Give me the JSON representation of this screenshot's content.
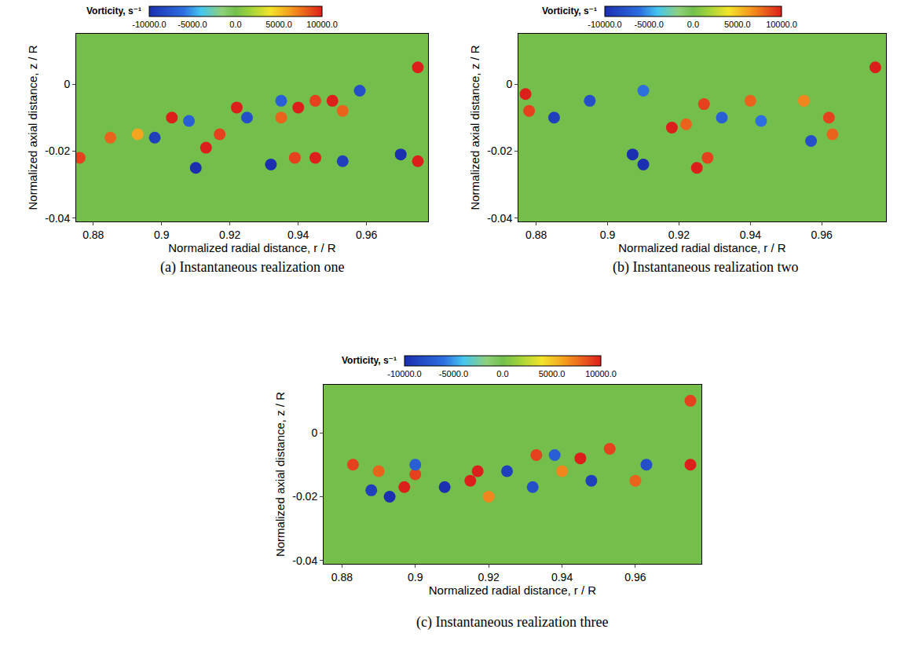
{
  "chart_data": [
    {
      "type": "scatter",
      "caption": "(a) Instantaneous realization one",
      "x_label": "Normalized radial distance, r / R",
      "y_label": "Normalized axial distance, z / R",
      "xlim": [
        0.875,
        0.978
      ],
      "xticks": [
        0.88,
        0.9,
        0.92,
        0.94,
        0.96
      ],
      "ylim": [
        -0.041,
        0.015
      ],
      "yticks": [
        -0.04,
        -0.02,
        0
      ],
      "colorbar": {
        "title": "Vorticity, s⁻¹",
        "range": [
          -10000,
          10000
        ],
        "ticks": [
          {
            "value": -10000,
            "label": "-10000.0"
          },
          {
            "value": -5000,
            "label": "-5000.0"
          },
          {
            "value": 0,
            "label": "0.0"
          },
          {
            "value": 5000,
            "label": "5000.0"
          },
          {
            "value": 10000,
            "label": "10000.0"
          }
        ]
      },
      "x": [
        0.876,
        0.885,
        0.893,
        0.903,
        0.913,
        0.917,
        0.922,
        0.935,
        0.94,
        0.945,
        0.95,
        0.953,
        0.939,
        0.945,
        0.975,
        0.975,
        0.91,
        0.898,
        0.908,
        0.932,
        0.925,
        0.953,
        0.97,
        0.958,
        0.935
      ],
      "y": [
        -0.022,
        -0.016,
        -0.015,
        -0.01,
        -0.019,
        -0.015,
        -0.007,
        -0.01,
        -0.007,
        -0.005,
        -0.005,
        -0.008,
        -0.022,
        -0.022,
        -0.023,
        0.005,
        -0.025,
        -0.016,
        -0.011,
        -0.024,
        -0.01,
        -0.023,
        -0.021,
        -0.002,
        -0.005
      ],
      "vorticity": [
        9000,
        8000,
        6000,
        10000,
        10000,
        9000,
        10000,
        8000,
        10000,
        9000,
        10000,
        8000,
        9000,
        10000,
        10000,
        10000,
        -10000,
        -9000,
        -7000,
        -10000,
        -8000,
        -9000,
        -10000,
        -8000,
        -7000
      ]
    },
    {
      "type": "scatter",
      "caption": "(b) Instantaneous realization two",
      "x_label": "Normalized radial distance, r / R",
      "y_label": "Normalized axial distance, z / R",
      "xlim": [
        0.875,
        0.978
      ],
      "xticks": [
        0.88,
        0.9,
        0.92,
        0.94,
        0.96
      ],
      "ylim": [
        -0.041,
        0.015
      ],
      "yticks": [
        -0.04,
        -0.02,
        0
      ],
      "colorbar": {
        "title": "Vorticity, s⁻¹",
        "range": [
          -10000,
          10000
        ],
        "ticks": [
          {
            "value": -10000,
            "label": "-10000.0"
          },
          {
            "value": -5000,
            "label": "-5000.0"
          },
          {
            "value": 0,
            "label": "0.0"
          },
          {
            "value": 5000,
            "label": "5000.0"
          },
          {
            "value": 10000,
            "label": "10000.0"
          }
        ]
      },
      "x": [
        0.877,
        0.878,
        0.925,
        0.928,
        0.918,
        0.922,
        0.927,
        0.94,
        0.955,
        0.962,
        0.963,
        0.975,
        0.885,
        0.895,
        0.91,
        0.907,
        0.91,
        0.957,
        0.932,
        0.943
      ],
      "y": [
        -0.003,
        -0.008,
        -0.025,
        -0.022,
        -0.013,
        -0.012,
        -0.006,
        -0.005,
        -0.005,
        -0.01,
        -0.015,
        0.005,
        -0.01,
        -0.005,
        -0.002,
        -0.021,
        -0.024,
        -0.017,
        -0.01,
        -0.011
      ],
      "vorticity": [
        10000,
        9000,
        10000,
        9000,
        10000,
        8000,
        9000,
        8000,
        7000,
        9000,
        8000,
        10000,
        -9000,
        -8000,
        -6000,
        -10000,
        -10000,
        -8000,
        -7000,
        -6000
      ]
    },
    {
      "type": "scatter",
      "caption": "(c) Instantaneous realization three",
      "x_label": "Normalized radial distance, r / R",
      "y_label": "Normalized axial distance, z / R",
      "xlim": [
        0.875,
        0.978
      ],
      "xticks": [
        0.88,
        0.9,
        0.92,
        0.94,
        0.96
      ],
      "ylim": [
        -0.041,
        0.015
      ],
      "yticks": [
        -0.04,
        -0.02,
        0
      ],
      "colorbar": {
        "title": "Vorticity, s⁻¹",
        "range": [
          -10000,
          10000
        ],
        "ticks": [
          {
            "value": -10000,
            "label": "-10000.0"
          },
          {
            "value": -5000,
            "label": "-5000.0"
          },
          {
            "value": 0,
            "label": "0.0"
          },
          {
            "value": 5000,
            "label": "5000.0"
          },
          {
            "value": 10000,
            "label": "10000.0"
          }
        ]
      },
      "x": [
        0.883,
        0.89,
        0.897,
        0.9,
        0.915,
        0.917,
        0.92,
        0.933,
        0.94,
        0.945,
        0.953,
        0.96,
        0.975,
        0.975,
        0.888,
        0.893,
        0.9,
        0.908,
        0.925,
        0.932,
        0.938,
        0.948,
        0.963
      ],
      "y": [
        -0.01,
        -0.012,
        -0.017,
        -0.013,
        -0.015,
        -0.012,
        -0.02,
        -0.007,
        -0.012,
        -0.008,
        -0.005,
        -0.015,
        -0.01,
        0.01,
        -0.018,
        -0.02,
        -0.01,
        -0.017,
        -0.012,
        -0.017,
        -0.007,
        -0.015,
        -0.01
      ],
      "vorticity": [
        9000,
        8000,
        10000,
        9000,
        10000,
        10000,
        7000,
        9000,
        7000,
        10000,
        9000,
        8000,
        10000,
        9000,
        -9000,
        -10000,
        -7000,
        -10000,
        -9000,
        -8000,
        -7000,
        -9000,
        -8000
      ]
    }
  ]
}
